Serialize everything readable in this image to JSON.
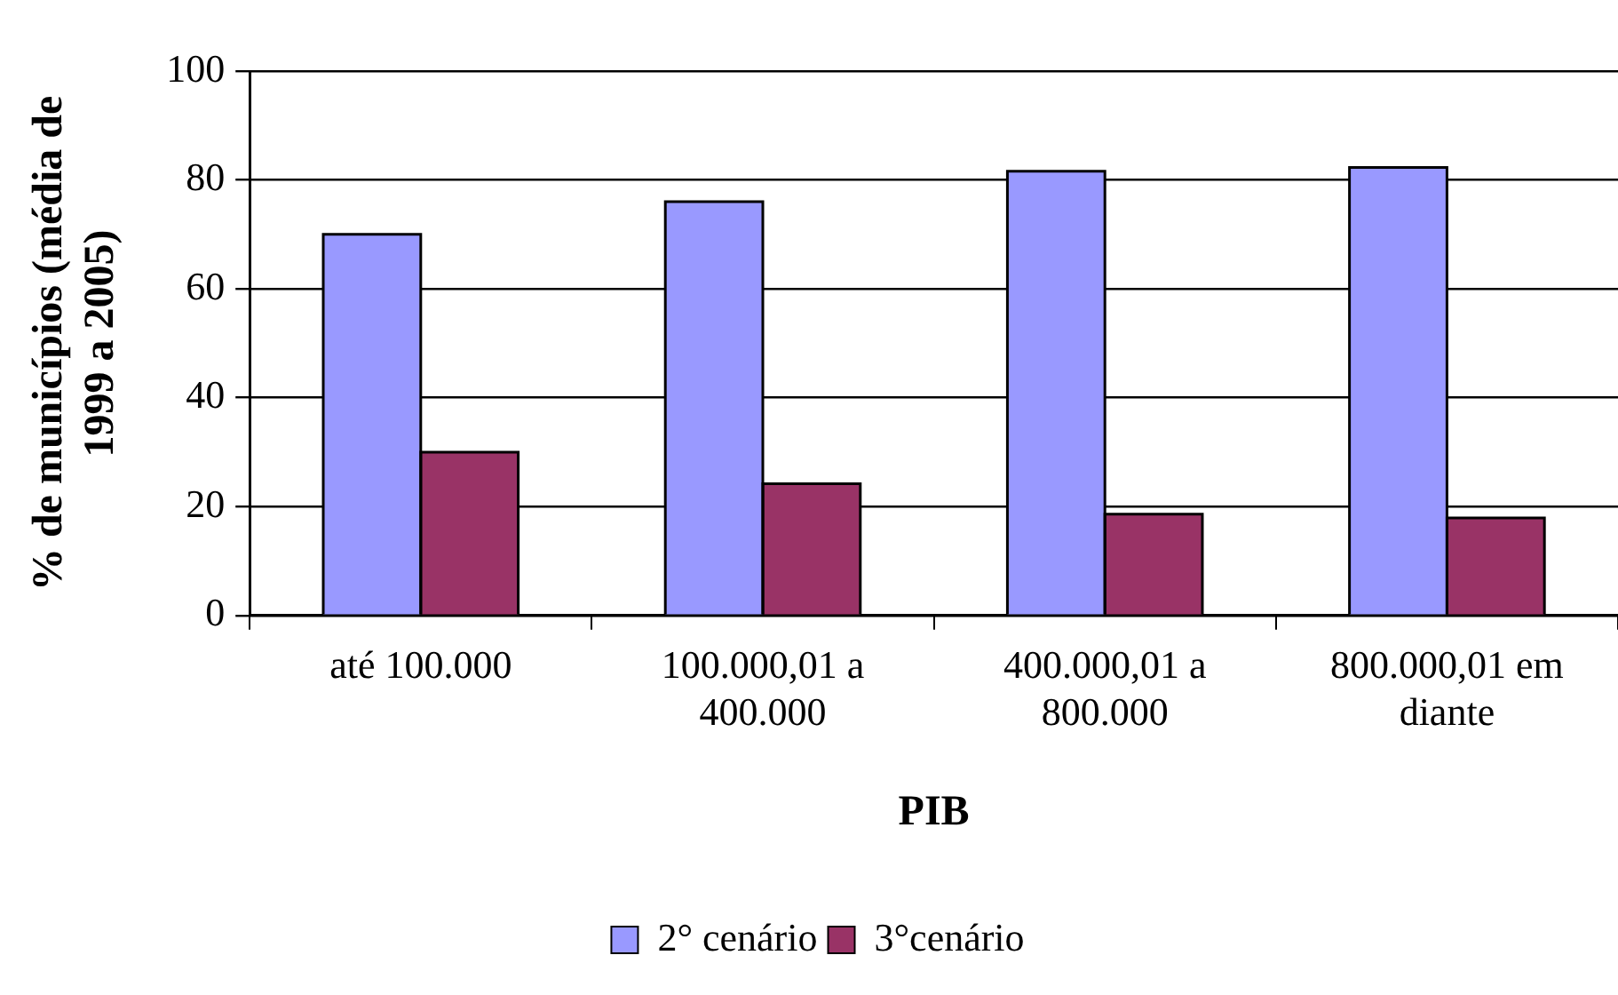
{
  "chart_data": {
    "type": "bar",
    "xlabel": "PIB",
    "ylabel": "% de municípios (média de 1999 a 2005)",
    "categories": [
      "até 100.000",
      "100.000,01 a 400.000",
      "400.000,01 a 800.000",
      "800.000,01 em diante"
    ],
    "series": [
      {
        "name": "2° cenário",
        "color": "#9999ff",
        "values": [
          70,
          76,
          81.6,
          82.3
        ]
      },
      {
        "name": "3°cenário",
        "color": "#993366",
        "values": [
          30,
          24.2,
          18.6,
          17.9
        ]
      }
    ],
    "ylim": [
      0,
      100
    ],
    "yticks": [
      0,
      20,
      40,
      60,
      80,
      100
    ],
    "grid": "y",
    "legend": "bottom"
  }
}
